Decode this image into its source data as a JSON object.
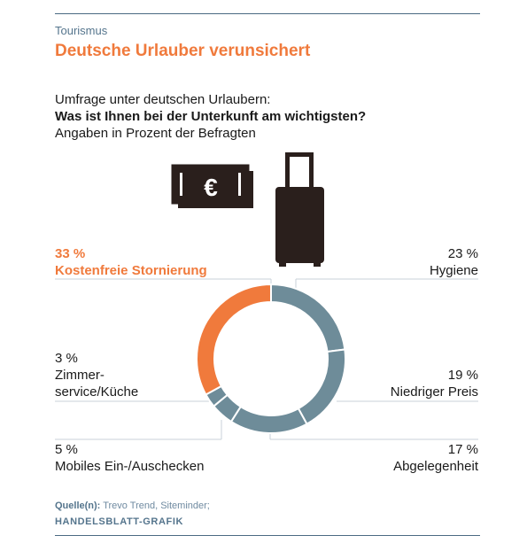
{
  "header": {
    "kicker": "Tourismus",
    "headline": "Deutsche Urlauber verunsichert"
  },
  "intro": {
    "line1": "Umfrage unter deutschen Urlaubern:",
    "question": "Was ist Ihnen bei der Unterkunft am wichtigsten?",
    "line3": "Angaben in Prozent der Befragten"
  },
  "icons": [
    "euro-banknote-icon",
    "suitcase-icon"
  ],
  "colors": {
    "accent": "#f07a3c",
    "series": "#6e8c99",
    "rule": "#4a6a82"
  },
  "chart_data": {
    "type": "pie",
    "variant": "donut",
    "unit": "%",
    "slices": [
      {
        "label": "Hygiene",
        "pct_text": "23 %",
        "value": 23,
        "color": "#6e8c99"
      },
      {
        "label": "Niedriger Preis",
        "pct_text": "19 %",
        "value": 19,
        "color": "#6e8c99"
      },
      {
        "label": "Abgelegenheit",
        "pct_text": "17 %",
        "value": 17,
        "color": "#6e8c99"
      },
      {
        "label": "Mobiles Ein-/Auschecken",
        "pct_text": "5 %",
        "value": 5,
        "color": "#6e8c99"
      },
      {
        "label_lines": [
          "Zimmer-",
          "service/Küche"
        ],
        "label": "Zimmerservice/Küche",
        "pct_text": "3 %",
        "value": 3,
        "color": "#6e8c99"
      },
      {
        "label": "Kostenfreie Stornierung",
        "pct_text": "33 %",
        "value": 33,
        "color": "#f07a3c"
      }
    ]
  },
  "footer": {
    "source_label": "Quelle(n):",
    "source_text": " Trevo Trend, Siteminder;",
    "brand": "HANDELSBLATT-GRAFIK"
  }
}
